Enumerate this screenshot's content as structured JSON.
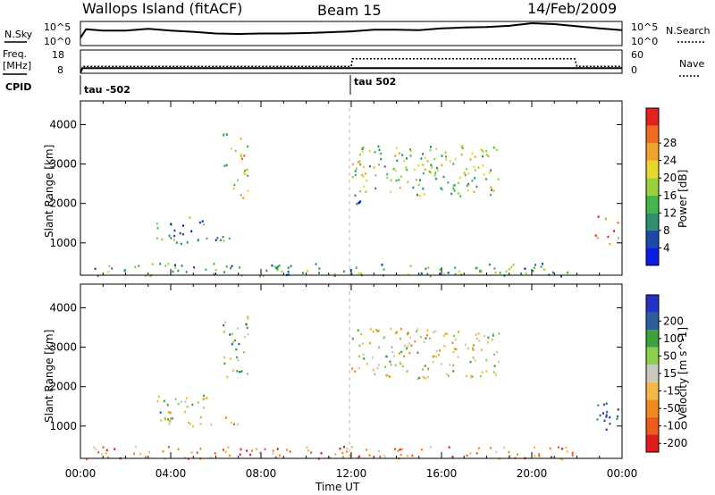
{
  "header": {
    "station": "Wallops Island (fitACF)",
    "beam": "Beam 15",
    "date": "14/Feb/2009"
  },
  "top_panels": {
    "nsky_label": "N.Sky",
    "nsearch_label": "N.Search",
    "noise_ticks": [
      "10^5",
      "10^0"
    ],
    "freq_label": "Freq.",
    "freq_unit": "[MHz]",
    "freq_ticks": [
      "18",
      "8"
    ],
    "nave_ticks": [
      "60",
      "0"
    ],
    "nave_label": "Nave",
    "cpid_label": "CPID",
    "cpid_values": [
      "tau -502",
      "tau 502"
    ]
  },
  "colors": {
    "power_scale": [
      "#0a1de6",
      "#1c49a8",
      "#2f8e6e",
      "#42b84a",
      "#9bd03d",
      "#e8d82c",
      "#f0a329",
      "#ef6c1f",
      "#e5201d"
    ],
    "velocity_scale": [
      "#e31a1c",
      "#f05a1a",
      "#f08a1a",
      "#f4b848",
      "#c9c9bf",
      "#8ccf4d",
      "#3ea23a",
      "#2c5e9e",
      "#2432c4"
    ]
  },
  "chart_data": [
    {
      "type": "line",
      "title": "N.Sky / N.Search",
      "x_unit": "hours UT",
      "xlim": [
        0,
        24
      ],
      "series": [
        {
          "name": "N.Sky",
          "x": [
            0,
            0.25,
            1,
            2,
            3,
            4,
            5,
            6,
            7,
            8,
            9,
            10,
            11,
            12,
            13,
            14,
            15,
            16,
            17,
            18,
            19,
            20,
            21,
            22,
            23,
            24
          ],
          "values": [
            1.6,
            3.6,
            3.3,
            3.3,
            3.7,
            3.3,
            3.0,
            2.6,
            2.5,
            2.6,
            2.6,
            2.7,
            2.9,
            3.1,
            3.5,
            3.5,
            3.4,
            3.8,
            4.0,
            4.1,
            4.4,
            5.0,
            4.8,
            4.3,
            3.8,
            3.4
          ]
        }
      ]
    },
    {
      "type": "line",
      "title": "Freq. / Nave / CPID",
      "x_unit": "hours UT",
      "xlim": [
        0,
        24
      ],
      "series": [
        {
          "name": "Freq.",
          "x": [
            0,
            0.1,
            12.05,
            12.05,
            24
          ],
          "values": [
            8,
            10,
            10,
            10,
            10
          ]
        },
        {
          "name": "Nave",
          "x": [
            0,
            0.1,
            12.0,
            12.05,
            21.9,
            22.0,
            24
          ],
          "values": [
            0,
            17,
            17,
            38,
            38,
            17,
            17
          ]
        },
        {
          "name": "CPID",
          "x": [
            0,
            12.05
          ],
          "values": [
            -502,
            502
          ]
        }
      ]
    },
    {
      "type": "heatmap",
      "title": "Power",
      "xlabel": "Time UT",
      "ylabel": "Slant Range [km]",
      "colorbar_label": "Power [dB]",
      "colorbar_ticks": [
        "4",
        "8",
        "12",
        "16",
        "20",
        "24",
        "28"
      ],
      "xlim": [
        0,
        24
      ],
      "ylim": [
        180,
        4600
      ],
      "xticks": [
        "00:00",
        "04:00",
        "08:00",
        "12:00",
        "16:00",
        "20:00",
        "00:00"
      ],
      "yticks": [
        "1000",
        "2000",
        "3000",
        "4000"
      ],
      "grid": false,
      "regions": [
        {
          "t": [
            3.2,
            5.6
          ],
          "r": [
            1000,
            1800
          ],
          "level": 0.3
        },
        {
          "t": [
            5.5,
            7.2
          ],
          "r": [
            1050,
            1250
          ],
          "level": 0.35
        },
        {
          "t": [
            6.3,
            7.4
          ],
          "r": [
            2150,
            3800
          ],
          "level": 0.55
        },
        {
          "t": [
            12.0,
            12.4
          ],
          "r": [
            1800,
            2500
          ],
          "level": 0.3
        },
        {
          "t": [
            12.0,
            18.6
          ],
          "r": [
            2200,
            3500
          ],
          "level": 0.5
        },
        {
          "t": [
            22.8,
            23.8
          ],
          "r": [
            900,
            1700
          ],
          "level": 0.85
        },
        {
          "t": [
            0.1,
            21.8
          ],
          "r": [
            180,
            500
          ],
          "level": 0.35
        }
      ]
    },
    {
      "type": "heatmap",
      "title": "Velocity",
      "xlabel": "Time UT",
      "ylabel": "Slant Range [km]",
      "colorbar_label": "Velocity [m s^-1]",
      "colorbar_ticks": [
        "-200",
        "-100",
        "-50",
        "-15",
        "15",
        "50",
        "100",
        "200"
      ],
      "xlim": [
        0,
        24
      ],
      "ylim": [
        180,
        4600
      ],
      "xticks": [
        "00:00",
        "04:00",
        "08:00",
        "12:00",
        "16:00",
        "20:00",
        "00:00"
      ],
      "yticks": [
        "1000",
        "2000",
        "3000",
        "4000"
      ],
      "grid": false,
      "regions": [
        {
          "t": [
            3.2,
            5.6
          ],
          "r": [
            1000,
            1800
          ],
          "level": 0.55
        },
        {
          "t": [
            5.5,
            7.2
          ],
          "r": [
            1050,
            1250
          ],
          "level": 0.35
        },
        {
          "t": [
            6.3,
            7.4
          ],
          "r": [
            2150,
            3800
          ],
          "level": 0.6
        },
        {
          "t": [
            12.0,
            18.6
          ],
          "r": [
            2200,
            3500
          ],
          "level": 0.48
        },
        {
          "t": [
            22.8,
            23.8
          ],
          "r": [
            900,
            1700
          ],
          "level": 0.9
        },
        {
          "t": [
            0.1,
            21.8
          ],
          "r": [
            180,
            500
          ],
          "level": 0.3
        }
      ]
    }
  ]
}
